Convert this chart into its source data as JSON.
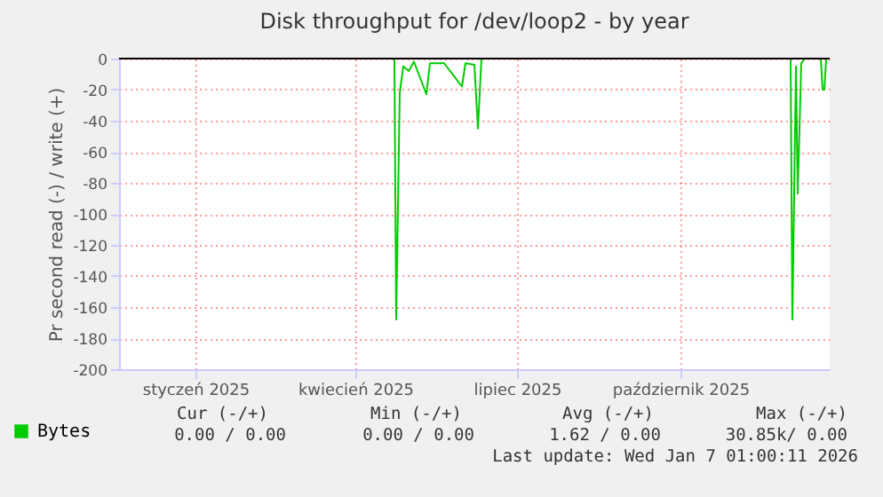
{
  "chart_data": {
    "type": "line",
    "title": "Disk throughput for /dev/loop2 - by year",
    "ylabel": "Pr second read (-) / write (+)",
    "x": [
      "2025-05-07",
      "2025-05-08",
      "2025-05-10",
      "2025-05-12",
      "2025-05-15",
      "2025-05-18",
      "2025-05-25",
      "2025-05-27",
      "2025-06-04",
      "2025-06-14",
      "2025-06-16",
      "2025-06-21",
      "2025-06-23",
      "2025-06-25",
      "2025-11-01",
      "2025-12-16",
      "2025-12-17",
      "2025-12-19",
      "2025-12-20",
      "2025-12-22",
      "2025-12-24",
      "2025-12-28",
      "2026-01-02",
      "2026-01-03",
      "2026-01-04",
      "2026-01-05"
    ],
    "series": [
      {
        "name": "Bytes",
        "color": "#00cc00",
        "values": [
          0,
          -168,
          -22,
          -5,
          -8,
          -2,
          -23,
          -3,
          -3,
          -18,
          -3,
          -4,
          -45,
          0,
          null,
          0,
          -168,
          -5,
          -87,
          -3,
          0,
          null,
          0,
          -20,
          -20,
          0
        ]
      }
    ],
    "xlim": [
      "2024-12-03",
      "2026-01-07"
    ],
    "xticks": [
      {
        "value": "2025-01-15",
        "label": "styczeń 2025"
      },
      {
        "value": "2025-04-15",
        "label": "kwiecień 2025"
      },
      {
        "value": "2025-07-15",
        "label": "lipiec 2025"
      },
      {
        "value": "2025-10-15",
        "label": "październik 2025"
      }
    ],
    "ylim": [
      -200,
      0
    ],
    "yticks": [
      -200,
      -180,
      -160,
      -140,
      -120,
      -100,
      -80,
      -60,
      -40,
      -20,
      0
    ],
    "grid": true,
    "legend": "bottom left",
    "marker": "none",
    "line_style": "solid",
    "ref_lines": [
      {
        "axis": "y",
        "value": 0,
        "color": "#000000"
      }
    ],
    "annotations": [
      "Cur (-/+)",
      "Min (-/+)",
      "Avg (-/+)",
      "Max (-/+)",
      "0.00 /  0.00",
      "0.00 /  0.00",
      "1.62 /  0.00",
      "30.85k/  0.00",
      "Last update: Wed Jan  7 01:00:11 2026"
    ]
  }
}
